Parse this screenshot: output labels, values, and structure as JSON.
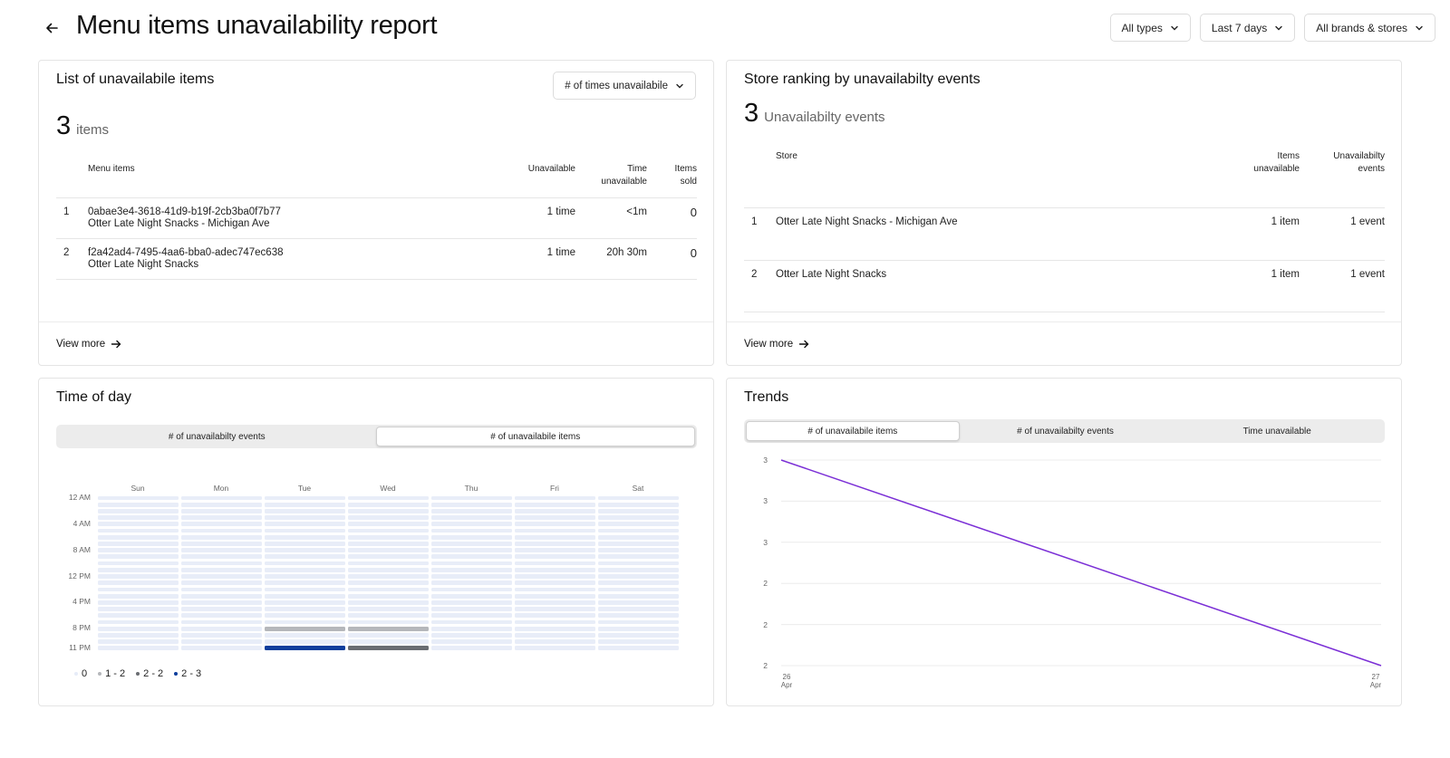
{
  "header": {
    "title": "Menu items unavailability report",
    "filters": [
      "All types",
      "Last 7 days",
      "All brands & stores"
    ]
  },
  "items_card": {
    "title": "List of unavailabile items",
    "sort_label": "# of times unavailabile",
    "count": "3",
    "count_unit": "items",
    "columns": {
      "menu_items": "Menu items",
      "unavailable": "Unavailable",
      "time_line1": "Time",
      "time_line2": "unavailable",
      "sold_line1": "Items",
      "sold_line2": "sold"
    },
    "rows": [
      {
        "rank": "1",
        "name": "0abae3e4-3618-41d9-b19f-2cb3ba0f7b77",
        "store": "Otter Late Night Snacks - Michigan Ave",
        "unavailable": "1 time",
        "time": "<1m",
        "sold": "0"
      },
      {
        "rank": "2",
        "name": "f2a42ad4-7495-4aa6-bba0-adec747ec638",
        "store": "Otter Late Night Snacks",
        "unavailable": "1 time",
        "time": "20h 30m",
        "sold": "0"
      }
    ],
    "view_more": "View more"
  },
  "ranking_card": {
    "title": "Store ranking by unavailabilty events",
    "count": "3",
    "count_unit": "Unavailabilty events",
    "columns": {
      "store": "Store",
      "items_line1": "Items",
      "items_line2": "unavailable",
      "events_line1": "Unavailabilty",
      "events_line2": "events"
    },
    "rows": [
      {
        "rank": "1",
        "store": "Otter Late Night Snacks - Michigan Ave",
        "items": "1 item",
        "events": "1 event"
      },
      {
        "rank": "2",
        "store": "Otter Late Night Snacks",
        "items": "1 item",
        "events": "1 event"
      }
    ],
    "view_more": "View more"
  },
  "time_of_day_card": {
    "title": "Time of day",
    "tabs": [
      "# of unavailabilty events",
      "# of unavailabile items"
    ],
    "active_tab": 1,
    "days": [
      "Sun",
      "Mon",
      "Tue",
      "Wed",
      "Thu",
      "Fri",
      "Sat"
    ],
    "hour_labels": [
      "12 AM",
      "4 AM",
      "8 AM",
      "12 PM",
      "4 PM",
      "8 PM",
      "11 PM"
    ],
    "hour_label_rows": [
      0,
      4,
      8,
      12,
      16,
      20,
      23
    ],
    "rows_per_day": 24,
    "highlights": [
      {
        "day": 2,
        "hour": 20,
        "level": "1-2"
      },
      {
        "day": 3,
        "hour": 20,
        "level": "1-2"
      },
      {
        "day": 2,
        "hour": 23,
        "level": "2-3"
      },
      {
        "day": 3,
        "hour": 23,
        "level": "2-2"
      }
    ],
    "legend": [
      {
        "label": "0",
        "color": "#e6ecf8"
      },
      {
        "label": "1 - 2",
        "color": "#b5b7bb"
      },
      {
        "label": "2 - 2",
        "color": "#6a6d72"
      },
      {
        "label": "2 - 3",
        "color": "#0d3e9c"
      }
    ],
    "colors": {
      "empty": "#e8edf8",
      "1-2": "#b5b7bb",
      "2-2": "#6a6d72",
      "2-3": "#0d3e9c"
    }
  },
  "trends_card": {
    "title": "Trends",
    "tabs": [
      "# of unavailabile items",
      "# of unavailabilty events",
      "Time unavailable"
    ],
    "active_tab": 0,
    "chart_data": {
      "type": "line",
      "title": "Trends",
      "x": [
        "26 Apr",
        "27 Apr"
      ],
      "values": [
        3,
        2
      ],
      "y_tick_labels": [
        "3",
        "3",
        "3",
        "2",
        "2",
        "2"
      ],
      "ylim": [
        2,
        3
      ],
      "line_color": "#7b2fd6",
      "grid": true
    }
  }
}
